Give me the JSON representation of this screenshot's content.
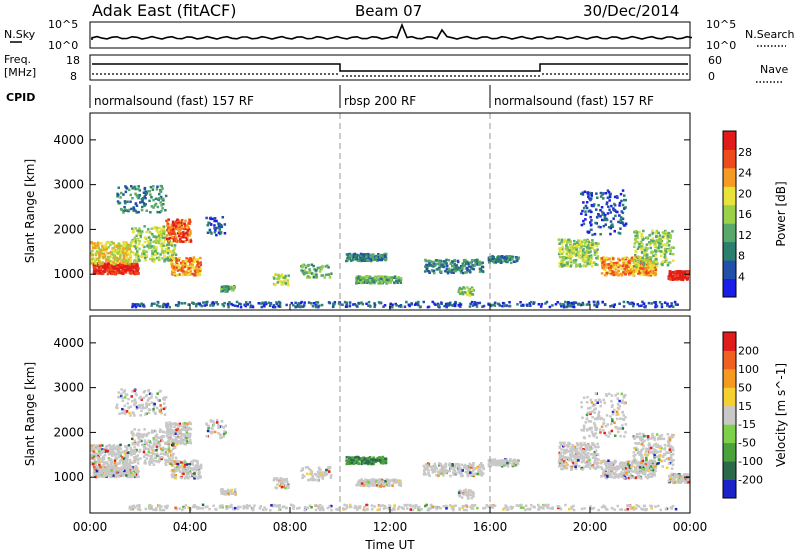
{
  "header": {
    "station": "Adak East (fitACF)",
    "beam": "Beam 07",
    "date": "30/Dec/2014"
  },
  "labels": {
    "nsky": "N.Sky",
    "nsearch": "N.Search",
    "freq": "Freq.",
    "mhz": "[MHz]",
    "nave": "Nave",
    "cpid": "CPID",
    "time_ut": "Time UT"
  },
  "noise_panel": {
    "ticks_left": [
      "10^5",
      "10^0"
    ],
    "ticks_right": [
      "10^5",
      "10^0"
    ]
  },
  "freq_panel": {
    "ticks_left": [
      "18",
      "8"
    ],
    "ticks_right": [
      "60",
      "0"
    ]
  },
  "cpid": {
    "segments": [
      {
        "label": "normalsound (fast) 157 RF",
        "start_h": 0,
        "end_h": 10
      },
      {
        "label": "rbsp 200 RF",
        "start_h": 10,
        "end_h": 16
      },
      {
        "label": "normalsound (fast) 157 RF",
        "start_h": 16,
        "end_h": 24
      }
    ]
  },
  "chart_data": [
    {
      "type": "heatmap",
      "title": "",
      "xlabel": "Time UT",
      "ylabel": "Slant Range [km]",
      "xlim": [
        0,
        24
      ],
      "ylim": [
        200,
        4600
      ],
      "x_ticks": [
        "00:00",
        "04:00",
        "08:00",
        "12:00",
        "16:00",
        "20:00",
        "00:00"
      ],
      "y_ticks": [
        "1000",
        "2000",
        "3000",
        "4000"
      ],
      "colorbar": {
        "label": "Power [dB]",
        "range": [
          0,
          32
        ],
        "ticks": [
          "4",
          "8",
          "12",
          "16",
          "20",
          "24",
          "28"
        ],
        "colors": [
          "#1b1ee6",
          "#2050a8",
          "#2c7f6e",
          "#58a86a",
          "#9ad04a",
          "#e8e23a",
          "#f59a22",
          "#ef4a1c",
          "#e21a1a"
        ]
      }
    },
    {
      "type": "heatmap",
      "title": "",
      "xlabel": "Time UT",
      "ylabel": "Slant Range [km]",
      "xlim": [
        0,
        24
      ],
      "ylim": [
        200,
        4600
      ],
      "x_ticks": [
        "00:00",
        "04:00",
        "08:00",
        "12:00",
        "16:00",
        "20:00",
        "00:00"
      ],
      "y_ticks": [
        "1000",
        "2000",
        "3000",
        "4000"
      ],
      "colorbar": {
        "label": "Velocity [m s^-1]",
        "range": [
          -250,
          250
        ],
        "ticks": [
          "200",
          "100",
          "50",
          "15",
          "-15",
          "-50",
          "-100",
          "-200"
        ],
        "colors": [
          "#1b24c8",
          "#2a6a4a",
          "#4aa23a",
          "#7cd04a",
          "#c8c8c8",
          "#f5d030",
          "#f59a20",
          "#f06020",
          "#e01c1c"
        ]
      }
    }
  ]
}
